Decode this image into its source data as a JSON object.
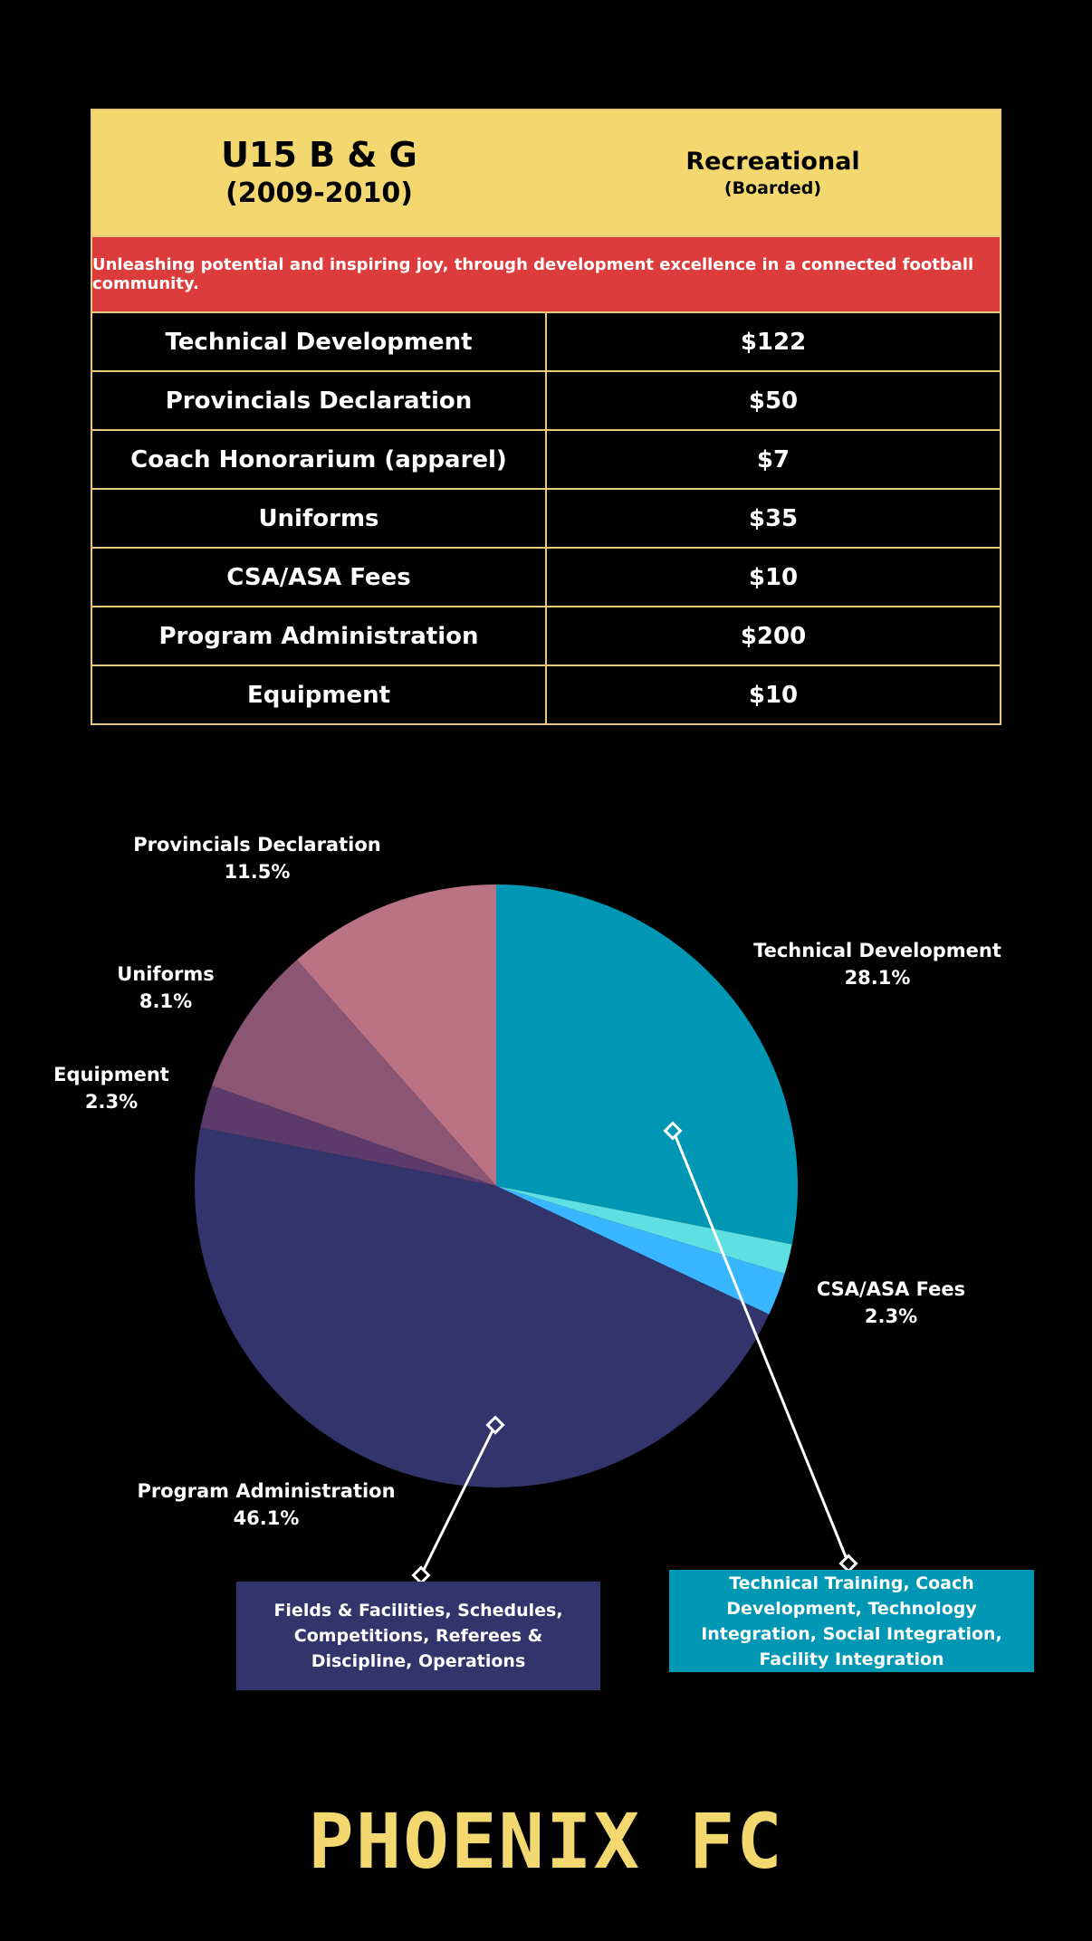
{
  "header": {
    "title": "U15 B & G",
    "years": "(2009-2010)",
    "program_type": "Recreational",
    "program_sub": "(Boarded)"
  },
  "mission": "Unleashing potential and inspiring joy, through development excellence in a connected football community.",
  "fees": [
    {
      "item": "Technical Development",
      "amount": "$122"
    },
    {
      "item": "Provincials Declaration",
      "amount": "$50"
    },
    {
      "item": "Coach Honorarium (apparel)",
      "amount": "$7"
    },
    {
      "item": "Uniforms",
      "amount": "$35"
    },
    {
      "item": "CSA/ASA Fees",
      "amount": "$10"
    },
    {
      "item": "Program Administration",
      "amount": "$200"
    },
    {
      "item": "Equipment",
      "amount": "$10"
    }
  ],
  "chart_data": {
    "type": "pie",
    "slices": [
      {
        "name": "Technical Development",
        "value": 28.1,
        "label": "28.1%",
        "color": "#0097b5"
      },
      {
        "name": "",
        "value": 1.6,
        "label": "",
        "color": "#5ee0e3"
      },
      {
        "name": "CSA/ASA Fees",
        "value": 2.3,
        "label": "2.3%",
        "color": "#38b6ff"
      },
      {
        "name": "Program Administration",
        "value": 46.1,
        "label": "46.1%",
        "color": "#31356c"
      },
      {
        "name": "Equipment",
        "value": 2.3,
        "label": "2.3%",
        "color": "#5c3a6c"
      },
      {
        "name": "Uniforms",
        "value": 8.1,
        "label": "8.1%",
        "color": "#8a5674"
      },
      {
        "name": "Provincials Declaration",
        "value": 11.5,
        "label": "11.5%",
        "color": "#b97384"
      }
    ]
  },
  "notes": {
    "admin": "Fields & Facilities, Schedules, Competitions, Referees & Discipline, Operations",
    "tech": "Technical Training, Coach Development, Technology Integration, Social Integration, Facility Integration"
  },
  "logo_text": "PHOENIX FC"
}
